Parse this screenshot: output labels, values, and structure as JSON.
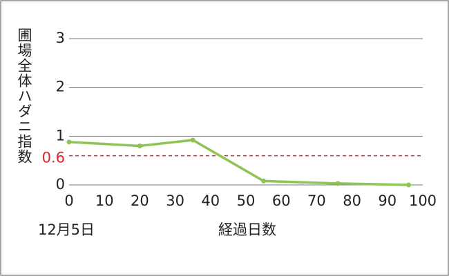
{
  "chart_data": {
    "type": "line",
    "y_label": "圃場全体ハダニ指数",
    "x_label": "経過日数",
    "annotation": "12月5日",
    "x": [
      0,
      20,
      35,
      55,
      76,
      96
    ],
    "series": [
      {
        "color": "#8dc454",
        "values": [
          0.88,
          0.8,
          0.92,
          0.08,
          0.03,
          0.0
        ]
      }
    ],
    "xlim": [
      0,
      100
    ],
    "xticks": [
      0,
      10,
      20,
      30,
      40,
      50,
      60,
      70,
      80,
      90,
      100
    ],
    "ylim": [
      0,
      3
    ],
    "yticks": [
      0,
      1,
      2,
      3
    ],
    "grid": true,
    "reference_line": {
      "value": 0.6,
      "color": "#d7282f"
    }
  }
}
